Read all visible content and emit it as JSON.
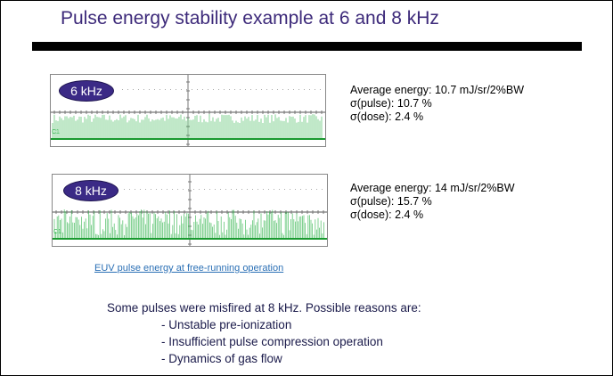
{
  "title": "Pulse energy stability example at 6 and 8 kHz",
  "scopes": [
    {
      "badge": "6 kHz",
      "channel_label": "C1",
      "trace_color": "#2fb34a",
      "stats": [
        "Average energy: 10.7 mJ/sr/2%BW",
        "σ(pulse): 10.7 %",
        "σ(dose): 2.4 %"
      ]
    },
    {
      "badge": "8 kHz",
      "channel_label": "C1",
      "trace_color": "#2fb34a",
      "stats": [
        "Average energy: 14 mJ/sr/2%BW",
        "σ(pulse): 15.7 %",
        "σ(dose): 2.4 %"
      ]
    }
  ],
  "caption_link": "EUV pulse energy at free-running operation",
  "body": {
    "intro": "Some pulses were misfired at 8 kHz. Possible reasons are:",
    "items": [
      "- Unstable pre-ionization",
      "- Insufficient pulse compression operation",
      "- Dynamics of gas flow"
    ]
  },
  "colors": {
    "title": "#3d2a7a",
    "badge": "#3b2a86",
    "link": "#2a6fb5"
  }
}
